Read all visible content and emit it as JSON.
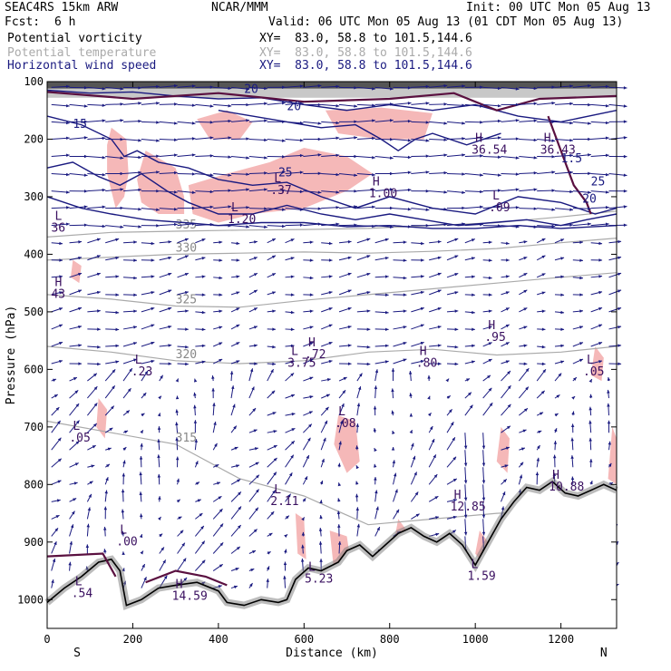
{
  "header": {
    "model": "SEAC4RS 15km ARW",
    "org": "NCAR/MMM",
    "init": "Init: 00 UTC Mon 05 Aug 13",
    "fcst_label": "Fcst:",
    "fcst_value": "6 h",
    "valid": "Valid: 06 UTC Mon 05 Aug 13 (01 CDT Mon 05 Aug 13)",
    "fields": [
      {
        "name": "Potential vorticity",
        "xy": "XY=  83.0, 58.8 to 101.5,144.6",
        "color": "#000000"
      },
      {
        "name": "Potential temperature",
        "xy": "XY=  83.0, 58.8 to 101.5,144.6",
        "color": "#aaaaaa"
      },
      {
        "name": "Horizontal wind speed",
        "xy": "XY=  83.0, 58.8 to 101.5,144.6",
        "color": "#1a1a80"
      }
    ]
  },
  "chart_data": {
    "type": "cross-section",
    "xlabel": "Distance (km)",
    "ylabel": "Pressure (hPa)",
    "xlim": [
      0,
      1330
    ],
    "ylim": [
      1050,
      100
    ],
    "x_ticks": [
      0,
      200,
      400,
      600,
      800,
      1000,
      1200
    ],
    "y_ticks": [
      100,
      200,
      300,
      400,
      500,
      600,
      700,
      800,
      900,
      1000
    ],
    "x_end_labels": {
      "left": "S",
      "right": "N"
    },
    "theta_contours": [
      {
        "label": "335",
        "points": [
          [
            0,
            370
          ],
          [
            150,
            362
          ],
          [
            300,
            360
          ],
          [
            450,
            358
          ],
          [
            600,
            357
          ],
          [
            750,
            355
          ],
          [
            900,
            350
          ],
          [
            1050,
            345
          ],
          [
            1200,
            335
          ],
          [
            1330,
            325
          ]
        ]
      },
      {
        "label": "330",
        "points": [
          [
            0,
            410
          ],
          [
            150,
            405
          ],
          [
            300,
            400
          ],
          [
            450,
            398
          ],
          [
            600,
            396
          ],
          [
            750,
            398
          ],
          [
            900,
            395
          ],
          [
            1050,
            390
          ],
          [
            1200,
            380
          ],
          [
            1330,
            372
          ]
        ]
      },
      {
        "label": "325",
        "points": [
          [
            0,
            470
          ],
          [
            150,
            478
          ],
          [
            300,
            490
          ],
          [
            450,
            492
          ],
          [
            600,
            480
          ],
          [
            750,
            470
          ],
          [
            900,
            460
          ],
          [
            1050,
            450
          ],
          [
            1200,
            440
          ],
          [
            1330,
            432
          ]
        ]
      },
      {
        "label": "320",
        "points": [
          [
            0,
            560
          ],
          [
            150,
            570
          ],
          [
            300,
            585
          ],
          [
            450,
            590
          ],
          [
            600,
            585
          ],
          [
            750,
            570
          ],
          [
            900,
            565
          ],
          [
            1050,
            575
          ],
          [
            1200,
            570
          ],
          [
            1330,
            560
          ]
        ]
      },
      {
        "label": "315",
        "points": [
          [
            0,
            690
          ],
          [
            150,
            710
          ],
          [
            300,
            730
          ],
          [
            450,
            790
          ],
          [
            600,
            820
          ],
          [
            750,
            870
          ],
          [
            900,
            860
          ],
          [
            1050,
            850
          ],
          [
            1200,
            845
          ],
          [
            1330,
            835
          ]
        ]
      }
    ],
    "pv_labels": [
      {
        "text": "L",
        "x": 18,
        "p": 340,
        "sub": "36"
      },
      {
        "text": "H",
        "x": 18,
        "p": 455,
        "sub": "43"
      },
      {
        "text": "L",
        "x": 60,
        "p": 705,
        "sub": ".05"
      },
      {
        "text": "L",
        "x": 205,
        "p": 590,
        "sub": ".23"
      },
      {
        "text": "L",
        "x": 170,
        "p": 885,
        "sub": ".00"
      },
      {
        "text": "L",
        "x": 65,
        "p": 975,
        "sub": ".54"
      },
      {
        "text": "H",
        "x": 300,
        "p": 980,
        "sub": "14.59"
      },
      {
        "text": "L",
        "x": 530,
        "p": 815,
        "sub": "2.11"
      },
      {
        "text": "L",
        "x": 570,
        "p": 575,
        "sub": "3.75"
      },
      {
        "text": "H",
        "x": 610,
        "p": 560,
        "sub": ".72"
      },
      {
        "text": "H",
        "x": 870,
        "p": 575,
        "sub": ".80"
      },
      {
        "text": "H",
        "x": 1030,
        "p": 530,
        "sub": ".95"
      },
      {
        "text": "L",
        "x": 680,
        "p": 680,
        "sub": ".08"
      },
      {
        "text": "H",
        "x": 950,
        "p": 825,
        "sub": "12.85"
      },
      {
        "text": "H",
        "x": 1180,
        "p": 790,
        "sub": "10.88"
      },
      {
        "text": "L",
        "x": 1260,
        "p": 590,
        "sub": ".05"
      },
      {
        "text": "L",
        "x": 610,
        "p": 950,
        "sub": "5.23"
      },
      {
        "text": "L",
        "x": 990,
        "p": 945,
        "sub": "1.59"
      },
      {
        "text": "H",
        "x": 760,
        "p": 280,
        "sub": "1.00"
      },
      {
        "text": "L",
        "x": 530,
        "p": 275,
        "sub": ".37"
      },
      {
        "text": "L",
        "x": 1040,
        "p": 305,
        "sub": ".09"
      },
      {
        "text": "H",
        "x": 1000,
        "p": 205,
        "sub": "36.54"
      },
      {
        "text": "H",
        "x": 1160,
        "p": 205,
        "sub": "36.43"
      },
      {
        "text": "L",
        "x": 430,
        "p": 325,
        "sub": "1.20"
      }
    ],
    "pv_values": [
      "20",
      "20",
      "20",
      "25",
      "25",
      "1.5",
      "15"
    ],
    "colors": {
      "pv": "#000000",
      "theta": "#aaaaaa",
      "wind": "#1a1a80",
      "windspeed_fill": "#f5b8b8",
      "terrain_line": "#000000",
      "pv_high_contour": "#5a1040"
    }
  }
}
